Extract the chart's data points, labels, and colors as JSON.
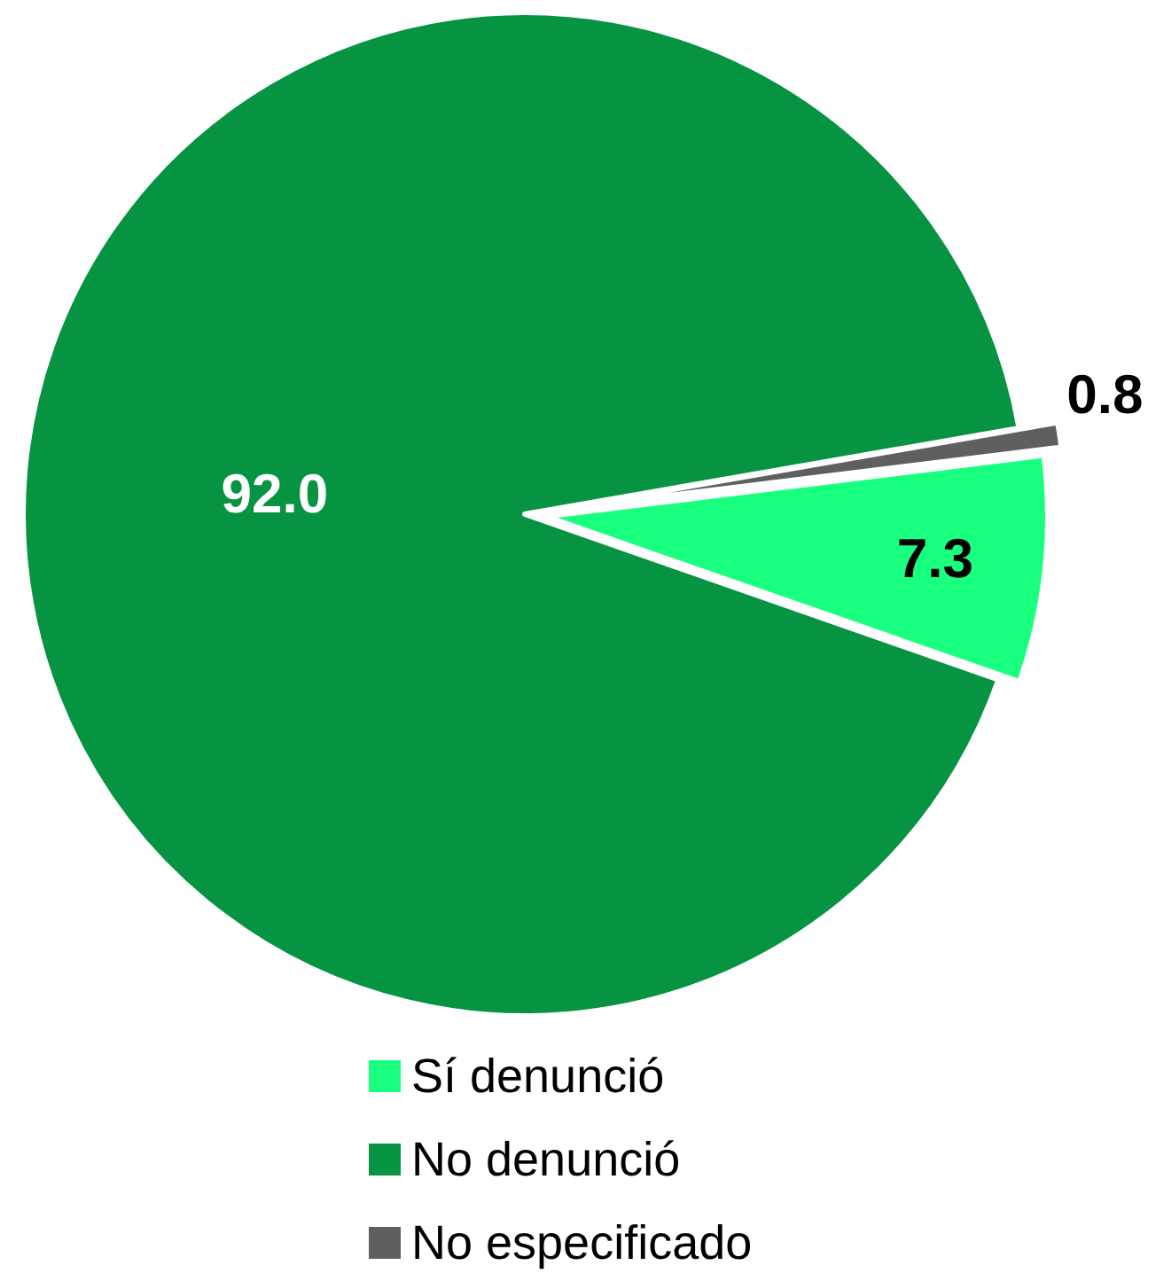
{
  "chart_data": {
    "type": "pie",
    "categories": [
      "Sí denunció",
      "No denunció",
      "No especificado"
    ],
    "values": [
      7.3,
      92.0,
      0.8
    ],
    "colors": [
      "#19ff80",
      "#069443",
      "#5f5f5f"
    ],
    "value_labels": [
      "7.3",
      "92.0",
      "0.8"
    ],
    "legend": "bottom"
  }
}
